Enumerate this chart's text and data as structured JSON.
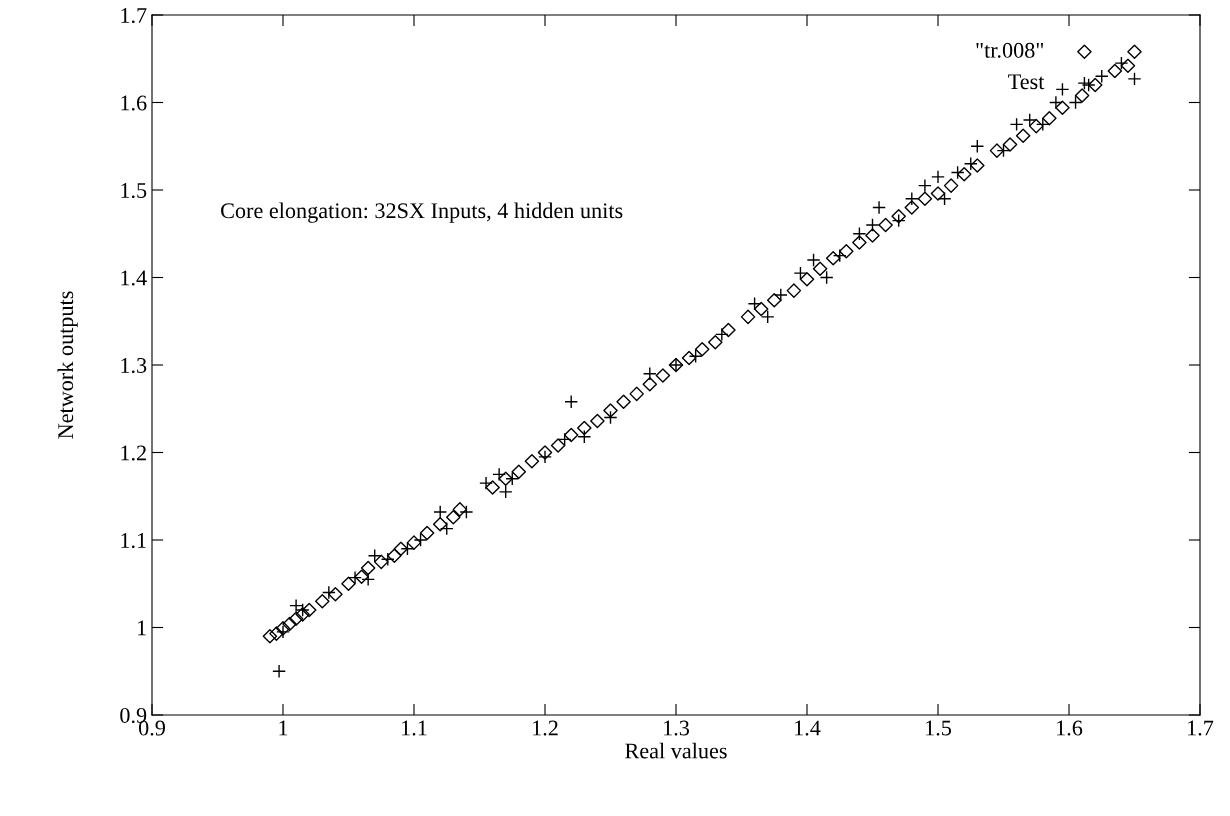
{
  "chart_data": {
    "type": "scatter",
    "xlabel": "Real values",
    "ylabel": "Network outputs",
    "annotations": [
      "Core elongation: 32SX Inputs, 4 hidden units"
    ],
    "xlim": [
      0.9,
      1.7
    ],
    "ylim": [
      0.9,
      1.7
    ],
    "xticks": [
      0.9,
      1,
      1.1,
      1.2,
      1.3,
      1.4,
      1.5,
      1.6,
      1.7
    ],
    "yticks": [
      0.9,
      1,
      1.1,
      1.2,
      1.3,
      1.4,
      1.5,
      1.6,
      1.7
    ],
    "grid": false,
    "legend": "top right",
    "series": [
      {
        "name": "\"tr.008\"",
        "color": "#000000",
        "marker": "diamond",
        "x": [
          0.99,
          0.995,
          1.0,
          1.005,
          1.01,
          1.015,
          1.02,
          1.03,
          1.04,
          1.05,
          1.06,
          1.065,
          1.075,
          1.085,
          1.09,
          1.1,
          1.11,
          1.12,
          1.13,
          1.135,
          1.16,
          1.17,
          1.18,
          1.19,
          1.2,
          1.21,
          1.22,
          1.23,
          1.24,
          1.25,
          1.26,
          1.27,
          1.28,
          1.29,
          1.3,
          1.31,
          1.32,
          1.33,
          1.34,
          1.355,
          1.365,
          1.375,
          1.39,
          1.4,
          1.41,
          1.42,
          1.43,
          1.44,
          1.45,
          1.46,
          1.47,
          1.48,
          1.49,
          1.5,
          1.51,
          1.52,
          1.53,
          1.545,
          1.555,
          1.565,
          1.575,
          1.585,
          1.595,
          1.61,
          1.62,
          1.635,
          1.645,
          1.65
        ],
        "values": [
          0.99,
          0.993,
          0.999,
          1.004,
          1.01,
          1.015,
          1.02,
          1.03,
          1.038,
          1.05,
          1.058,
          1.068,
          1.075,
          1.082,
          1.09,
          1.097,
          1.108,
          1.118,
          1.126,
          1.135,
          1.16,
          1.17,
          1.178,
          1.19,
          1.2,
          1.208,
          1.22,
          1.228,
          1.236,
          1.248,
          1.258,
          1.267,
          1.278,
          1.288,
          1.3,
          1.308,
          1.318,
          1.326,
          1.34,
          1.355,
          1.364,
          1.374,
          1.385,
          1.398,
          1.41,
          1.422,
          1.43,
          1.44,
          1.448,
          1.46,
          1.47,
          1.48,
          1.49,
          1.496,
          1.505,
          1.518,
          1.528,
          1.545,
          1.552,
          1.562,
          1.573,
          1.582,
          1.594,
          1.608,
          1.62,
          1.636,
          1.642,
          1.658
        ]
      },
      {
        "name": "Test",
        "color": "#000000",
        "marker": "cross",
        "x": [
          0.997,
          1.0,
          1.01,
          1.015,
          1.035,
          1.055,
          1.065,
          1.07,
          1.08,
          1.095,
          1.105,
          1.12,
          1.125,
          1.14,
          1.155,
          1.165,
          1.17,
          1.175,
          1.2,
          1.215,
          1.22,
          1.23,
          1.25,
          1.28,
          1.3,
          1.315,
          1.335,
          1.36,
          1.37,
          1.38,
          1.395,
          1.405,
          1.415,
          1.425,
          1.44,
          1.45,
          1.455,
          1.47,
          1.48,
          1.49,
          1.5,
          1.505,
          1.515,
          1.525,
          1.53,
          1.55,
          1.56,
          1.57,
          1.58,
          1.59,
          1.595,
          1.605,
          1.615,
          1.625,
          1.64,
          1.65
        ],
        "values": [
          0.95,
          0.995,
          1.025,
          1.02,
          1.04,
          1.057,
          1.055,
          1.082,
          1.078,
          1.09,
          1.1,
          1.132,
          1.113,
          1.132,
          1.165,
          1.175,
          1.155,
          1.17,
          1.195,
          1.215,
          1.258,
          1.218,
          1.24,
          1.29,
          1.3,
          1.31,
          1.335,
          1.37,
          1.355,
          1.38,
          1.405,
          1.42,
          1.4,
          1.425,
          1.45,
          1.46,
          1.48,
          1.465,
          1.49,
          1.505,
          1.515,
          1.49,
          1.52,
          1.53,
          1.55,
          1.545,
          1.575,
          1.58,
          1.575,
          1.6,
          1.615,
          1.6,
          1.62,
          1.63,
          1.645,
          1.627
        ]
      }
    ]
  }
}
